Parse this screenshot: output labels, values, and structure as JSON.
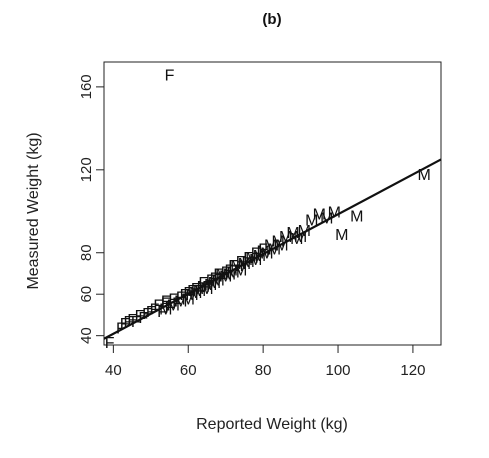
{
  "chart_data": {
    "type": "scatter",
    "title": "(b)",
    "xlabel": "Reported Weight (kg)",
    "ylabel": "Measured Weight (kg)",
    "xlim": [
      37.5,
      127.5
    ],
    "ylim": [
      35.5,
      172
    ],
    "x_ticks": [
      40,
      60,
      80,
      100,
      120
    ],
    "y_ticks": [
      40,
      60,
      80,
      120,
      160
    ],
    "grid": false,
    "legend": "none",
    "marker_labels": [
      "F",
      "M"
    ],
    "series": [
      {
        "name": "F",
        "points": [
          [
            55,
            166
          ],
          [
            39,
            37
          ],
          [
            42,
            44
          ],
          [
            43,
            46
          ],
          [
            44,
            47
          ],
          [
            45,
            48
          ],
          [
            46,
            47
          ],
          [
            47,
            50
          ],
          [
            48,
            49
          ],
          [
            49,
            51
          ],
          [
            50,
            52
          ],
          [
            51,
            53
          ],
          [
            52,
            55
          ],
          [
            53,
            52
          ],
          [
            54,
            56
          ],
          [
            54,
            57
          ],
          [
            55,
            54
          ],
          [
            56,
            58
          ],
          [
            57,
            56
          ],
          [
            58,
            59
          ],
          [
            59,
            60
          ],
          [
            60,
            61
          ],
          [
            61,
            62
          ],
          [
            62,
            63
          ],
          [
            63,
            62
          ],
          [
            64,
            66
          ],
          [
            65,
            64
          ],
          [
            66,
            67
          ],
          [
            67,
            68
          ],
          [
            68,
            70
          ],
          [
            69,
            68
          ],
          [
            70,
            71
          ],
          [
            71,
            72
          ],
          [
            72,
            74
          ],
          [
            74,
            76
          ],
          [
            76,
            78
          ],
          [
            78,
            80
          ],
          [
            80,
            82
          ]
        ]
      },
      {
        "name": "M",
        "points": [
          [
            123,
            118
          ],
          [
            105,
            98
          ],
          [
            101,
            89
          ],
          [
            99,
            100
          ],
          [
            97,
            97
          ],
          [
            95,
            99
          ],
          [
            93,
            96
          ],
          [
            91,
            91
          ],
          [
            90,
            88
          ],
          [
            89,
            87
          ],
          [
            88,
            90
          ],
          [
            86,
            88
          ],
          [
            85,
            84
          ],
          [
            84,
            86
          ],
          [
            83,
            82
          ],
          [
            82,
            84
          ],
          [
            81,
            80
          ],
          [
            80,
            81
          ],
          [
            79,
            79
          ],
          [
            78,
            77
          ],
          [
            77,
            78
          ],
          [
            76,
            76
          ],
          [
            75,
            75
          ],
          [
            74,
            72
          ],
          [
            73,
            74
          ],
          [
            72,
            71
          ],
          [
            71,
            70
          ],
          [
            70,
            69
          ],
          [
            69,
            70
          ],
          [
            68,
            67
          ],
          [
            67,
            66
          ],
          [
            66,
            65
          ],
          [
            65,
            63
          ],
          [
            64,
            64
          ],
          [
            63,
            62
          ],
          [
            62,
            61
          ],
          [
            61,
            60
          ],
          [
            60,
            58
          ],
          [
            58,
            57
          ],
          [
            56,
            55
          ],
          [
            54,
            53
          ]
        ]
      }
    ],
    "fit_line": {
      "x": [
        37.5,
        127.5
      ],
      "y": [
        38.5,
        125
      ]
    }
  }
}
